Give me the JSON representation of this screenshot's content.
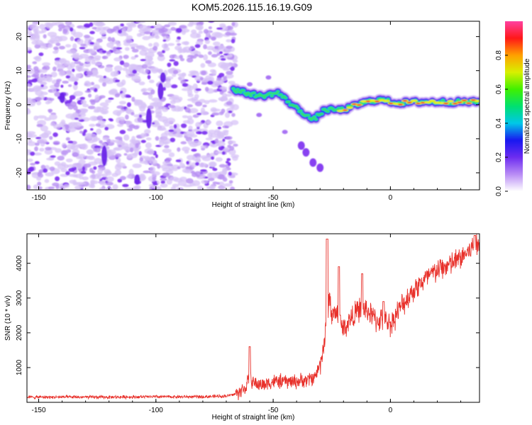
{
  "title": "KOM5.2026.115.16.19.G09",
  "colors": {
    "snr_line": "#e8302a",
    "axis": "#000000",
    "spec_base": "#8a3cf0"
  },
  "chart_data": [
    {
      "type": "heatmap",
      "name": "spectrogram",
      "xlabel": "Height of straight line (km)",
      "ylabel": "Frequency (Hz)",
      "xlim": [
        -155,
        38
      ],
      "ylim": [
        -25,
        24.5
      ],
      "x_ticks": [
        -150,
        -100,
        -50,
        0
      ],
      "x_tick_labels": [
        "-150",
        "-100",
        "-50",
        "0"
      ],
      "y_ticks": [
        -20,
        -10,
        0,
        10,
        20
      ],
      "y_tick_labels": [
        "-20",
        "-10",
        "0",
        "10",
        "20"
      ],
      "colorbar": {
        "label": "Normalized spectral amplitude",
        "range": [
          0,
          1
        ],
        "ticks": [
          0.0,
          0.2,
          0.4,
          0.6,
          0.8
        ],
        "tick_labels": [
          "0.0",
          "0.2",
          "0.4",
          "0.6",
          "0.8"
        ]
      },
      "noise_region_x": [
        -155,
        -66
      ],
      "signal_track": [
        [
          -67,
          4.5
        ],
        [
          -62,
          3.5
        ],
        [
          -55,
          2.5
        ],
        [
          -48,
          3.5
        ],
        [
          -42,
          0
        ],
        [
          -37,
          -2.5
        ],
        [
          -33,
          -4.5
        ],
        [
          -28,
          -1.5
        ],
        [
          -20,
          -1.5
        ],
        [
          -12,
          0.5
        ],
        [
          -5,
          1.5
        ],
        [
          3,
          0.5
        ],
        [
          12,
          0.8
        ],
        [
          25,
          0.8
        ],
        [
          38,
          0.8
        ]
      ],
      "side_branch": [
        [
          -38,
          -12
        ],
        [
          -36,
          -14
        ],
        [
          -33,
          -17
        ],
        [
          -30,
          -18.5
        ]
      ]
    },
    {
      "type": "line",
      "name": "snr",
      "xlabel": "Height of straight line (km)",
      "ylabel": "SNR (10 * v/v)",
      "xlim": [
        -155,
        38
      ],
      "ylim": [
        0,
        4850
      ],
      "x_ticks": [
        -150,
        -100,
        -50,
        0
      ],
      "x_tick_labels": [
        "-150",
        "-100",
        "-50",
        "0"
      ],
      "y_ticks": [
        1000,
        2000,
        3000,
        4000
      ],
      "y_tick_labels": [
        "1000",
        "2000",
        "3000",
        "4000"
      ],
      "series": [
        {
          "name": "SNR",
          "x": [
            -155,
            -140,
            -120,
            -100,
            -80,
            -70,
            -66,
            -62,
            -60,
            -58,
            -55,
            -50,
            -45,
            -40,
            -35,
            -32,
            -30,
            -28,
            -26,
            -25,
            -23,
            -20,
            -17,
            -13,
            -10,
            -6,
            -3,
            0,
            5,
            10,
            15,
            20,
            25,
            30,
            35,
            38
          ],
          "y": [
            150,
            150,
            150,
            160,
            160,
            180,
            240,
            400,
            700,
            550,
            500,
            600,
            600,
            600,
            650,
            750,
            1100,
            1800,
            3100,
            2500,
            2600,
            2100,
            2400,
            2700,
            2650,
            2350,
            2400,
            2250,
            2800,
            3250,
            3550,
            3800,
            3950,
            4150,
            4450,
            4480
          ]
        }
      ],
      "peaks": [
        [
          -60,
          1600
        ],
        [
          -27,
          4700
        ],
        [
          -22,
          3900
        ],
        [
          -12,
          3700
        ],
        [
          -3,
          2900
        ],
        [
          36,
          4800
        ]
      ]
    }
  ]
}
